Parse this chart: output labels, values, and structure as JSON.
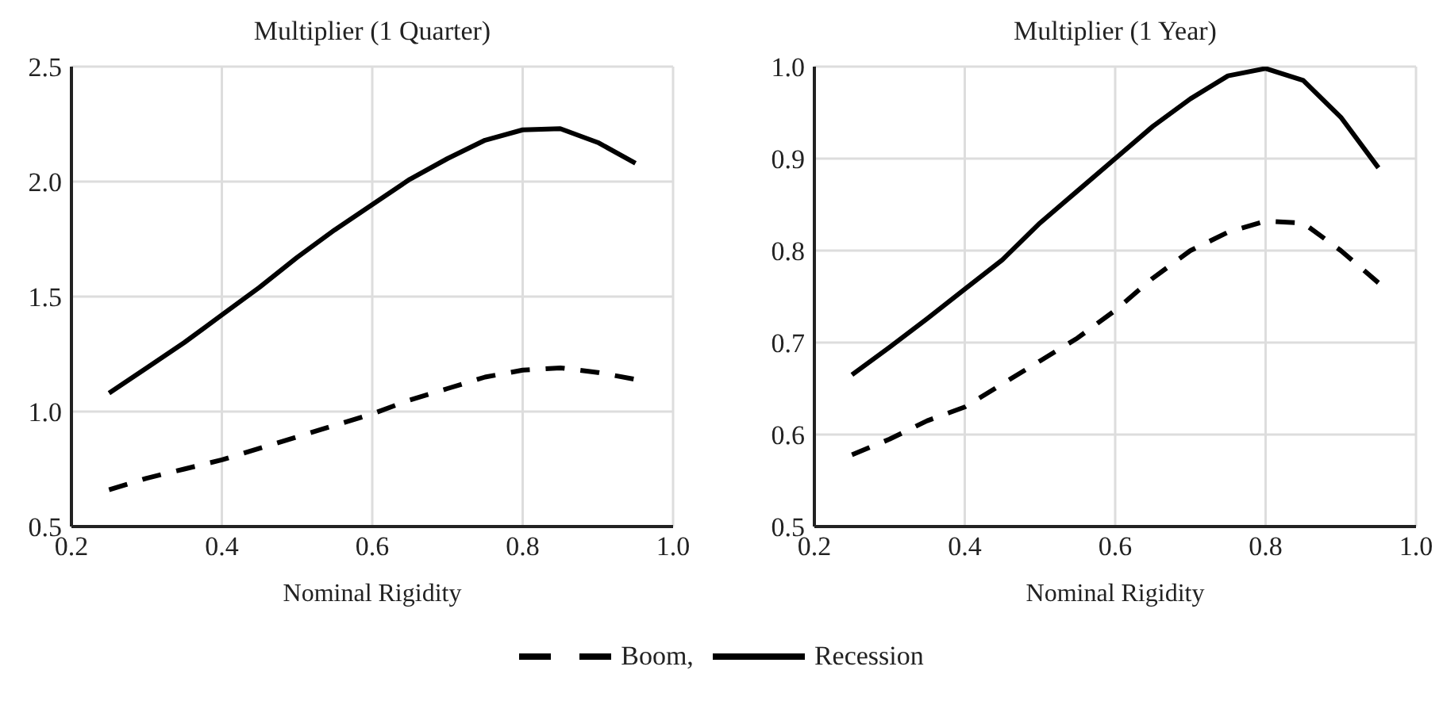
{
  "chart_data": [
    {
      "type": "line",
      "title": "Multiplier (1 Quarter)",
      "xlabel": "Nominal Rigidity",
      "x": [
        0.25,
        0.3,
        0.35,
        0.4,
        0.45,
        0.5,
        0.55,
        0.6,
        0.65,
        0.7,
        0.75,
        0.8,
        0.85,
        0.9,
        0.95
      ],
      "xlim": [
        0.2,
        1.0
      ],
      "xticks": [
        {
          "value": 0.2,
          "label": "0.2"
        },
        {
          "value": 0.4,
          "label": "0.4"
        },
        {
          "value": 0.6,
          "label": "0.6"
        },
        {
          "value": 0.8,
          "label": "0.8"
        },
        {
          "value": 1.0,
          "label": "1.0"
        }
      ],
      "ylim": [
        0.5,
        2.5
      ],
      "yticks": [
        {
          "value": 0.5,
          "label": "0.5"
        },
        {
          "value": 1.0,
          "label": "1.0"
        },
        {
          "value": 1.5,
          "label": "1.5"
        },
        {
          "value": 2.0,
          "label": "2.0"
        },
        {
          "value": 2.5,
          "label": "2.5"
        }
      ],
      "grid": true,
      "legend": "bottom",
      "series": [
        {
          "name": "Boom,",
          "color": "#000000",
          "line_style": "dashed",
          "values": [
            0.66,
            0.71,
            0.75,
            0.79,
            0.84,
            0.89,
            0.94,
            0.99,
            1.05,
            1.1,
            1.15,
            1.18,
            1.19,
            1.17,
            1.14
          ]
        },
        {
          "name": "Recession",
          "color": "#000000",
          "line_style": "solid",
          "values": [
            1.08,
            1.19,
            1.3,
            1.42,
            1.54,
            1.67,
            1.79,
            1.9,
            2.01,
            2.1,
            2.18,
            2.225,
            2.23,
            2.17,
            2.08
          ]
        }
      ]
    },
    {
      "type": "line",
      "title": "Multiplier (1 Year)",
      "xlabel": "Nominal Rigidity",
      "x": [
        0.25,
        0.3,
        0.35,
        0.4,
        0.45,
        0.5,
        0.55,
        0.6,
        0.65,
        0.7,
        0.75,
        0.8,
        0.85,
        0.9,
        0.95
      ],
      "xlim": [
        0.2,
        1.0
      ],
      "xticks": [
        {
          "value": 0.2,
          "label": "0.2"
        },
        {
          "value": 0.4,
          "label": "0.4"
        },
        {
          "value": 0.6,
          "label": "0.6"
        },
        {
          "value": 0.8,
          "label": "0.8"
        },
        {
          "value": 1.0,
          "label": "1.0"
        }
      ],
      "ylim": [
        0.5,
        1.0
      ],
      "yticks": [
        {
          "value": 0.5,
          "label": "0.5"
        },
        {
          "value": 0.6,
          "label": "0.6"
        },
        {
          "value": 0.7,
          "label": "0.7"
        },
        {
          "value": 0.8,
          "label": "0.8"
        },
        {
          "value": 0.9,
          "label": "0.9"
        },
        {
          "value": 1.0,
          "label": "1.0"
        }
      ],
      "grid": true,
      "series": [
        {
          "color": "#000000",
          "line_style": "dashed",
          "values": [
            0.578,
            0.595,
            0.615,
            0.63,
            0.655,
            0.68,
            0.705,
            0.735,
            0.77,
            0.8,
            0.82,
            0.832,
            0.83,
            0.8,
            0.765
          ]
        },
        {
          "color": "#000000",
          "line_style": "solid",
          "values": [
            0.665,
            0.695,
            0.726,
            0.758,
            0.79,
            0.83,
            0.865,
            0.9,
            0.935,
            0.965,
            0.99,
            0.998,
            0.985,
            0.945,
            0.89
          ]
        }
      ]
    }
  ]
}
